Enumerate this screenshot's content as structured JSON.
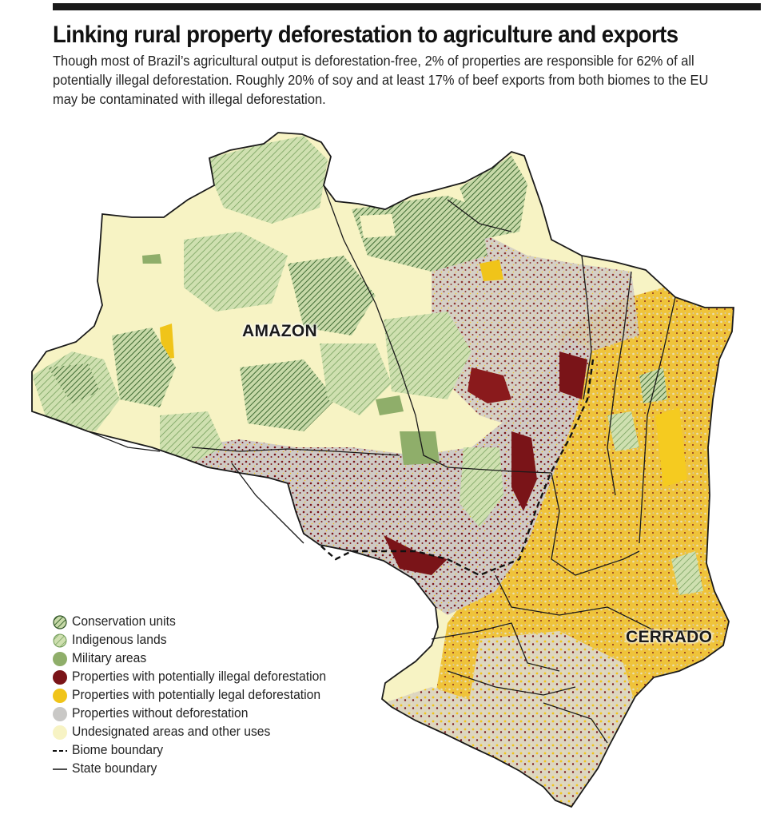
{
  "header": {
    "title": "Linking rural property deforestation to agriculture and exports",
    "subtitle": "Though most of Brazil’s agricultural output is deforestation-free, 2% of properties are responsible for 62% of all potentially illegal deforestation. Roughly 20% of soy and at least 17% of beef exports from both biomes to the EU may be contaminated with illegal deforestation."
  },
  "map": {
    "labels": {
      "amazon": "AMAZON",
      "cerrado": "CERRADO"
    }
  },
  "legend": {
    "items": [
      {
        "label": "Conservation units",
        "symbol": "dense-hatch",
        "color": "#5e8a4a"
      },
      {
        "label": "Indigenous lands",
        "symbol": "light-hatch",
        "color": "#9dbb80"
      },
      {
        "label": "Military areas",
        "symbol": "dot",
        "color": "#8fae6a"
      },
      {
        "label": "Properties with potentially illegal deforestation",
        "symbol": "dot",
        "color": "#7a1418"
      },
      {
        "label": "Properties with potentially legal deforestation",
        "symbol": "dot",
        "color": "#f0c419"
      },
      {
        "label": "Properties without deforestation",
        "symbol": "dot",
        "color": "#c9c8c6"
      },
      {
        "label": "Undesignated areas and other uses",
        "symbol": "dot",
        "color": "#f7f3c4"
      },
      {
        "label": "Biome boundary",
        "symbol": "dashed-line",
        "color": "#111111"
      },
      {
        "label": "State boundary",
        "symbol": "solid-line",
        "color": "#111111"
      }
    ]
  },
  "colors": {
    "undesignated": "#f7f3c4",
    "conservation": "#5e8a4a",
    "indigenous": "#b7cd98",
    "military": "#8fae6a",
    "illegal": "#7a1418",
    "legal": "#f0c419",
    "without": "#c9c8c6"
  }
}
